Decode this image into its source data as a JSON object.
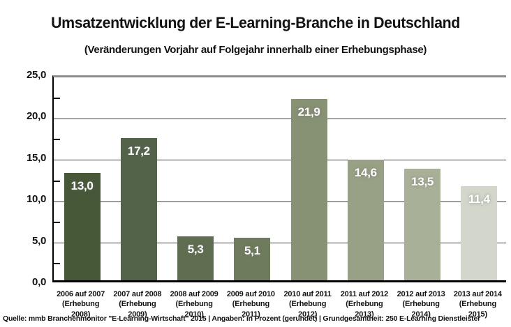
{
  "title": "Umsatzentwicklung der E-Learning-Branche in Deutschland",
  "subtitle": "(Veränderungen Vorjahr auf Folgejahr innerhalb einer Erhebungsphase)",
  "source": "Quelle: mmb Branchenmonitor \"E-Learning-Wirtschaft\" 2015 | Angaben: in Prozent (gerundet) | Grundgesamtheit: 250 E-Learning Dienstleister",
  "chart_data": {
    "type": "bar",
    "title": "Umsatzentwicklung der E-Learning-Branche in Deutschland",
    "subtitle": "(Veränderungen Vorjahr auf Folgejahr innerhalb einer Erhebungsphase)",
    "categories": [
      {
        "line1": "2006 auf 2007",
        "line2": "(Erhebung 2008)"
      },
      {
        "line1": "2007 auf 2008",
        "line2": "(Erhebung 2009)"
      },
      {
        "line1": "2008 auf 2009",
        "line2": "(Erhebung 2010)"
      },
      {
        "line1": "2009 auf 2010",
        "line2": "(Erhebung 2011)"
      },
      {
        "line1": "2010 auf 2011",
        "line2": "(Erhebung 2012)"
      },
      {
        "line1": "2011 auf 2012",
        "line2": "(Erhebung 2013)"
      },
      {
        "line1": "2012 auf 2013",
        "line2": "(Erhebung 2014)"
      },
      {
        "line1": "2013 auf 2014",
        "line2": "(Erhebung 2015)"
      }
    ],
    "values": [
      13.0,
      17.2,
      5.3,
      5.1,
      21.9,
      14.6,
      13.5,
      11.4
    ],
    "value_labels": [
      "13,0",
      "17,2",
      "5,3",
      "5,1",
      "21,9",
      "14,6",
      "13,5",
      "11,4"
    ],
    "bar_colors": [
      "#475839",
      "#536349",
      "#5f6e50",
      "#6e7b5c",
      "#879173",
      "#98a185",
      "#a9b098",
      "#d3d6ca"
    ],
    "xlabel": "",
    "ylabel": "",
    "ylim": [
      0,
      25
    ],
    "ytick_values": [
      25,
      20,
      15,
      10,
      5,
      0
    ],
    "ytick_labels": [
      "25,0",
      "20,0",
      "15,0",
      "10,0",
      "5,0",
      "0,0"
    ],
    "minor_tick_values": [
      22.5,
      17.5,
      12.5,
      7.5,
      2.5
    ],
    "grid": "horizontal",
    "legend": "none",
    "units": "Prozent (gerundet)"
  }
}
